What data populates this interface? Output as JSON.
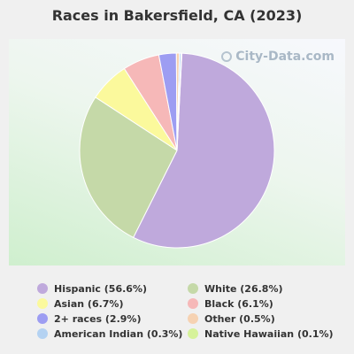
{
  "chart_data": {
    "type": "pie",
    "title": "Races in Bakersfield, CA (2023)",
    "slices": [
      {
        "label": "Hispanic (56.6%)",
        "value": 56.6,
        "color": "#bfa9dc"
      },
      {
        "label": "White (26.8%)",
        "value": 26.8,
        "color": "#c5d9a8"
      },
      {
        "label": "Asian (6.7%)",
        "value": 6.7,
        "color": "#fbf99c"
      },
      {
        "label": "Black (6.1%)",
        "value": 6.1,
        "color": "#f6b8b8"
      },
      {
        "label": "2+ races (2.9%)",
        "value": 2.9,
        "color": "#9d9df2"
      },
      {
        "label": "Other (0.5%)",
        "value": 0.5,
        "color": "#f6d2b2"
      },
      {
        "label": "American Indian (0.3%)",
        "value": 0.3,
        "color": "#b4d2f2"
      },
      {
        "label": "Native Hawaiian (0.1%)",
        "value": 0.1,
        "color": "#d6f29a"
      }
    ],
    "legend_order": [
      "Hispanic (56.6%)",
      "White (26.8%)",
      "Asian (6.7%)",
      "Black (6.1%)",
      "2+ races (2.9%)",
      "Other (0.5%)",
      "American Indian (0.3%)",
      "Native Hawaiian (0.1%)"
    ],
    "legend_placement": "bottom"
  },
  "watermark": {
    "text": "City-Data.com"
  }
}
